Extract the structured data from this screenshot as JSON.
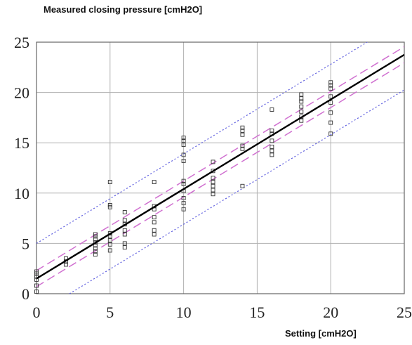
{
  "chart_data": {
    "type": "scatter",
    "ylabel": "Measured closing pressure [cmH2O]",
    "xlabel": "Setting [cmH2O]",
    "xlim": [
      0,
      25
    ],
    "ylim": [
      0,
      25
    ],
    "xticks": [
      0,
      5,
      10,
      15,
      20,
      25
    ],
    "yticks": [
      0,
      5,
      10,
      15,
      20,
      25
    ],
    "grid": true,
    "points": [
      [
        0,
        0.2
      ],
      [
        0,
        0.8
      ],
      [
        0,
        1.4
      ],
      [
        0,
        1.7
      ],
      [
        0,
        2.0
      ],
      [
        0,
        2.2
      ],
      [
        2,
        2.9
      ],
      [
        2,
        3.2
      ],
      [
        2,
        3.5
      ],
      [
        4,
        3.9
      ],
      [
        4,
        4.2
      ],
      [
        4,
        4.5
      ],
      [
        4,
        4.8
      ],
      [
        4,
        5.1
      ],
      [
        4,
        5.4
      ],
      [
        4,
        5.7
      ],
      [
        4,
        5.9
      ],
      [
        5,
        4.3
      ],
      [
        5,
        4.9
      ],
      [
        5,
        5.3
      ],
      [
        5,
        5.7
      ],
      [
        5,
        6.0
      ],
      [
        5,
        8.6
      ],
      [
        5,
        8.8
      ],
      [
        5,
        11.1
      ],
      [
        6,
        4.6
      ],
      [
        6,
        5.0
      ],
      [
        6,
        5.9
      ],
      [
        6,
        6.3
      ],
      [
        6,
        6.9
      ],
      [
        6,
        7.3
      ],
      [
        6,
        8.1
      ],
      [
        8,
        5.9
      ],
      [
        8,
        6.3
      ],
      [
        8,
        7.1
      ],
      [
        8,
        7.6
      ],
      [
        8,
        8.4
      ],
      [
        8,
        8.7
      ],
      [
        8,
        11.1
      ],
      [
        10,
        8.4
      ],
      [
        10,
        9.0
      ],
      [
        10,
        9.5
      ],
      [
        10,
        10.2
      ],
      [
        10,
        10.9
      ],
      [
        10,
        11.2
      ],
      [
        10,
        13.2
      ],
      [
        10,
        13.8
      ],
      [
        10,
        14.8
      ],
      [
        10,
        15.2
      ],
      [
        10,
        15.5
      ],
      [
        12,
        9.9
      ],
      [
        12,
        10.3
      ],
      [
        12,
        10.7
      ],
      [
        12,
        11.1
      ],
      [
        12,
        11.5
      ],
      [
        12,
        12.2
      ],
      [
        12,
        13.1
      ],
      [
        14,
        10.7
      ],
      [
        14,
        14.4
      ],
      [
        14,
        14.7
      ],
      [
        14,
        15.8
      ],
      [
        14,
        16.2
      ],
      [
        14,
        16.5
      ],
      [
        16,
        13.8
      ],
      [
        16,
        14.2
      ],
      [
        16,
        14.6
      ],
      [
        16,
        15.2
      ],
      [
        16,
        15.9
      ],
      [
        16,
        16.2
      ],
      [
        16,
        18.3
      ],
      [
        18,
        17.2
      ],
      [
        18,
        17.6
      ],
      [
        18,
        18.1
      ],
      [
        18,
        18.6
      ],
      [
        18,
        19.1
      ],
      [
        18,
        19.4
      ],
      [
        18,
        19.8
      ],
      [
        20,
        15.9
      ],
      [
        20,
        17.0
      ],
      [
        20,
        18.0
      ],
      [
        20,
        19.0
      ],
      [
        20,
        19.6
      ],
      [
        20,
        20.4
      ],
      [
        20,
        20.7
      ],
      [
        20,
        21.0
      ]
    ],
    "fit_line": {
      "intercept": 1.5,
      "slope": 0.89
    },
    "confidence_band": {
      "half_width": 0.8
    },
    "prediction_band": {
      "half_width": 3.5
    },
    "colors": {
      "fit": "#000000",
      "confidence": "#d070d0",
      "prediction": "#5555dd",
      "grid": "#b0b0b0",
      "points": "#333333"
    }
  }
}
